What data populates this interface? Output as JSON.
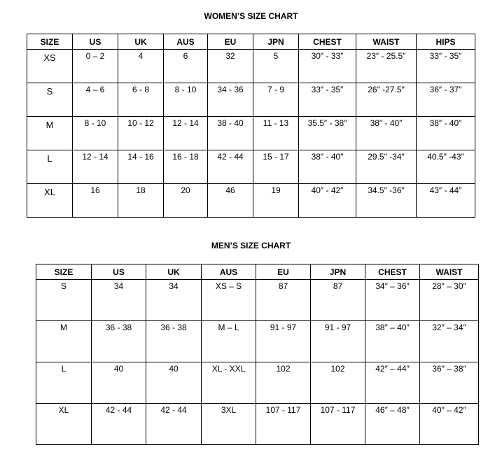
{
  "women": {
    "title": "WOMEN’S SIZE CHART",
    "headers": [
      "SIZE",
      "US",
      "UK",
      "AUS",
      "EU",
      "JPN",
      "CHEST",
      "WAIST",
      "HIPS"
    ],
    "rows": [
      [
        "XS",
        "0 – 2",
        "4",
        "6",
        "32",
        "5",
        "30″ - 33″",
        "23″ - 25.5″",
        "33″ - 35″"
      ],
      [
        "S",
        "4 – 6",
        "6 - 8",
        "8 - 10",
        "34 - 36",
        "7 - 9",
        "33″ - 35″",
        "26″ -27.5″",
        "36″ - 37″"
      ],
      [
        "M",
        "8 - 10",
        "10 - 12",
        "12 - 14",
        "38 - 40",
        "11 - 13",
        "35.5″ - 38″",
        "38″ - 40″",
        "38″ - 40″"
      ],
      [
        "L",
        "12 - 14",
        "14 - 16",
        "16 - 18",
        "42 - 44",
        "15 - 17",
        "38″ - 40″",
        "29.5″ -34″",
        "40.5″ -43″"
      ],
      [
        "XL",
        "16",
        "18",
        "20",
        "46",
        "19",
        "40″ - 42″",
        "34.5″ -36″",
        "43″ - 44″"
      ]
    ]
  },
  "men": {
    "title": "MEN’S SIZE CHART",
    "headers": [
      "SIZE",
      "US",
      "UK",
      "AUS",
      "EU",
      "JPN",
      "CHEST",
      "WAIST"
    ],
    "rows": [
      [
        "S",
        "34",
        "34",
        "XS – S",
        "87",
        "87",
        "34″ – 36″",
        "28″ – 30″"
      ],
      [
        "M",
        "36 - 38",
        "36 - 38",
        "M – L",
        "91 - 97",
        "91 - 97",
        "38″ – 40″",
        "32″ – 34″"
      ],
      [
        "L",
        "40",
        "40",
        "XL - XXL",
        "102",
        "102",
        "42″ – 44″",
        "36″ – 38″"
      ],
      [
        "XL",
        "42 - 44",
        "42 - 44",
        "3XL",
        "107 - 117",
        "107 - 117",
        "46″ – 48″",
        "40″ – 42″"
      ]
    ]
  }
}
